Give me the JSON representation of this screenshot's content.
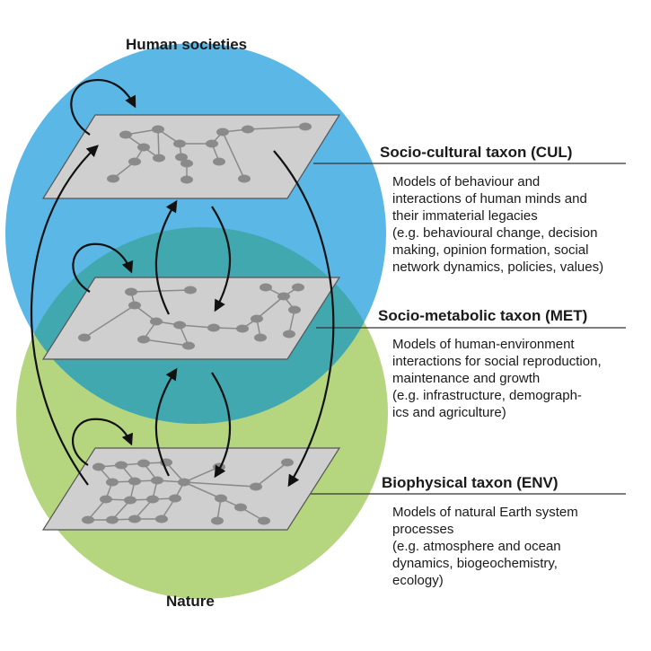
{
  "circles": {
    "top_label": "Human societies",
    "bottom_label": "Nature",
    "top_color": "#5bb8e6",
    "bottom_color": "#b5d67f",
    "overlap_color": "#41a8b0"
  },
  "layer_color": "#cfcfcf",
  "node_color": "#8a8a8a",
  "taxa": [
    {
      "title": "Socio-cultural taxon (CUL)",
      "lines": [
        "Models of behaviour and",
        "interactions of human minds and",
        "their immaterial legacies",
        "(e.g. behavioural change, decision",
        "making, opinion formation, social",
        "network dynamics, policies, values)"
      ]
    },
    {
      "title": "Socio-metabolic taxon (MET)",
      "lines": [
        "Models of human-environment",
        "interactions for social reproduction,",
        "maintenance and growth",
        "(e.g. infrastructure, demograph-",
        "ics and agriculture)"
      ]
    },
    {
      "title": "Biophysical taxon (ENV)",
      "lines": [
        "Models of natural Earth system",
        "processes",
        "(e.g. atmosphere and ocean",
        "dynamics, biogeochemistry,",
        "ecology)"
      ]
    }
  ]
}
